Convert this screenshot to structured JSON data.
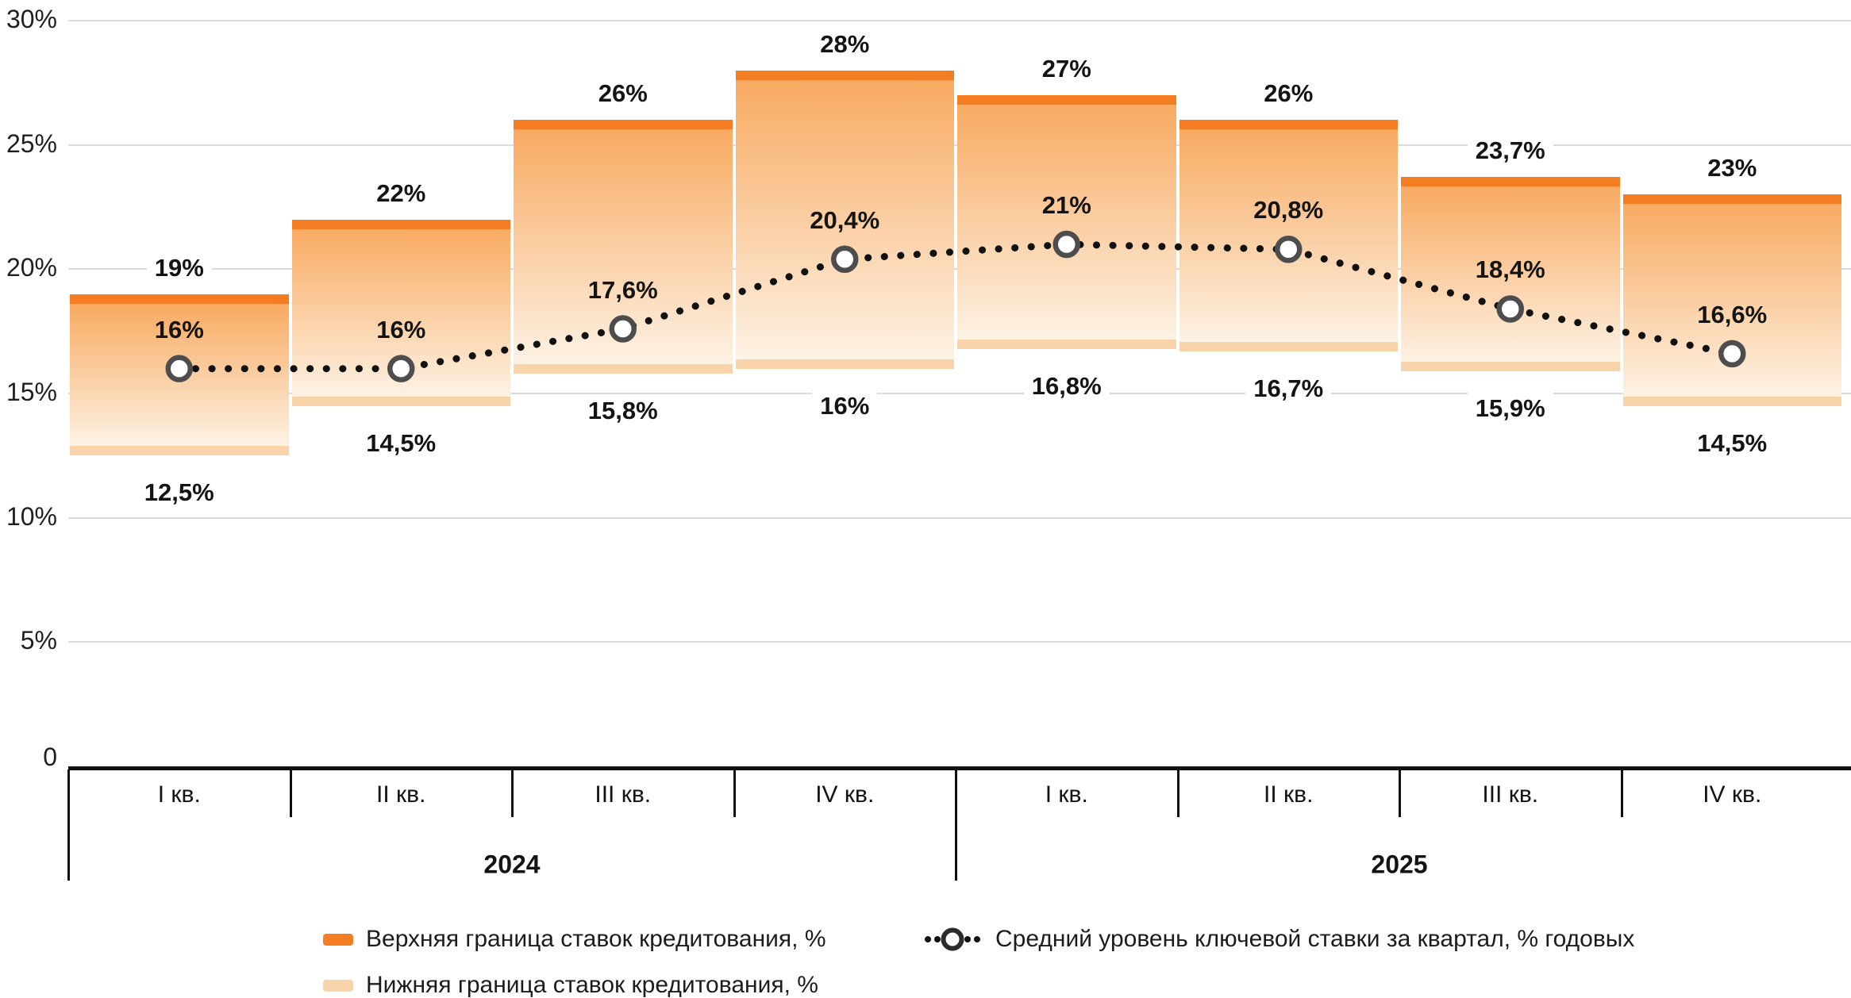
{
  "chart_data": {
    "type": "bar",
    "subtype": "floating-range-bars-with-dotted-line-overlay",
    "categories": [
      "I кв.",
      "II кв.",
      "III кв.",
      "IV кв.",
      "I кв.",
      "II кв.",
      "III кв.",
      "IV кв."
    ],
    "category_groups": [
      {
        "label": "2024",
        "span": 4
      },
      {
        "label": "2025",
        "span": 4
      }
    ],
    "series": [
      {
        "name": "Верхняя граница ставок кредитования, %",
        "role": "upper-bound",
        "values": [
          19,
          22,
          26,
          28,
          27,
          26,
          23.7,
          23
        ],
        "labels": [
          "19%",
          "22%",
          "26%",
          "28%",
          "27%",
          "26%",
          "23,7%",
          "23%"
        ],
        "color": "#F47D24"
      },
      {
        "name": "Нижняя граница ставок кредитования, %",
        "role": "lower-bound",
        "values": [
          12.5,
          14.5,
          15.8,
          16,
          16.8,
          16.7,
          15.9,
          14.5
        ],
        "labels": [
          "12,5%",
          "14,5%",
          "15,8%",
          "16%",
          "16,8%",
          "16,7%",
          "15,9%",
          "14,5%"
        ],
        "color": "#F9D3A9"
      },
      {
        "name": "Средний уровень ключевой ставки за квартал, % годовых",
        "role": "key-rate-line",
        "marker": "open-circle",
        "line_style": "dotted",
        "values": [
          16,
          16,
          17.6,
          20.4,
          21,
          20.8,
          18.4,
          16.6
        ],
        "labels": [
          "16%",
          "16%",
          "17,6%",
          "20,4%",
          "21%",
          "20,8%",
          "18,4%",
          "16,6%"
        ],
        "color": "#141414"
      }
    ],
    "y_axis": {
      "min": 0,
      "max": 30,
      "tick_step": 5,
      "tick_values": [
        0,
        5,
        10,
        15,
        20,
        25,
        30
      ],
      "tick_labels": [
        "0",
        "5%",
        "10%",
        "15%",
        "20%",
        "25%",
        "30%"
      ],
      "grid": true,
      "grid_color": "#DBDBDB"
    },
    "colors": {
      "upper_cap": "#F47D24",
      "lower_cap": "#F9D3A9",
      "bar_gradient_top": "#F8AA61",
      "bar_gradient_bottom": "#FDF2E4",
      "marker_ring": "#4D4D4D",
      "marker_fill": "#FFFFFF",
      "dotted_line": "#111111",
      "axis": "#101010"
    },
    "legend_position": "bottom"
  },
  "legend": {
    "items": [
      {
        "label": "Верхняя граница ставок кредитования, %"
      },
      {
        "label": "Нижняя граница ставок кредитования, %"
      },
      {
        "label": "Средний уровень ключевой ставки за квартал, % годовых"
      }
    ]
  }
}
